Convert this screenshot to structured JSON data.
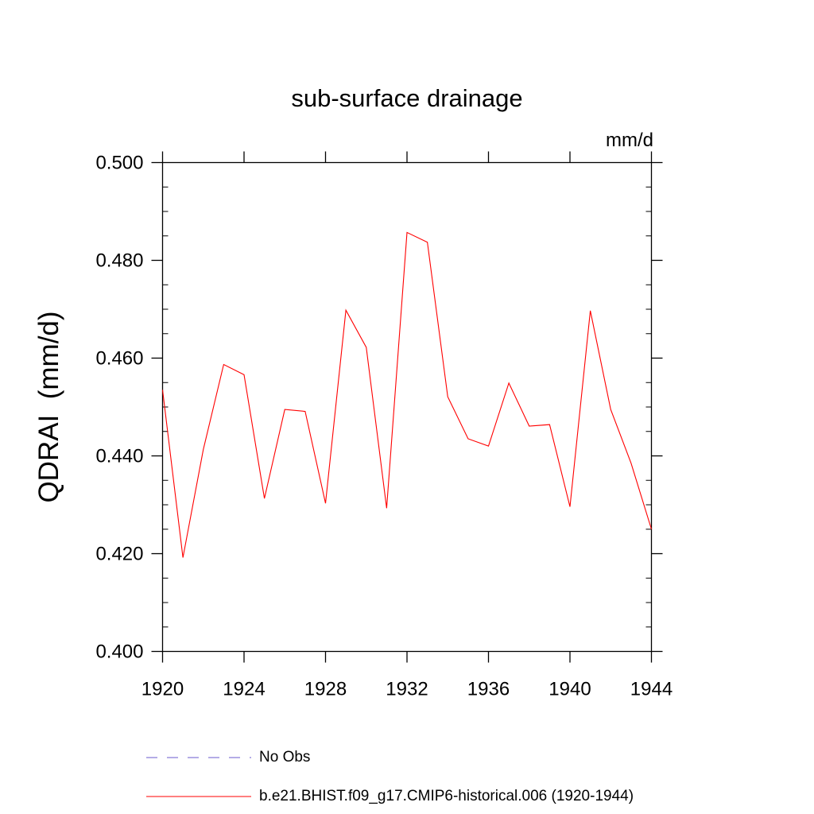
{
  "chart_data": {
    "type": "line",
    "title": "sub-surface drainage",
    "units": "mm/d",
    "ylabel": "QDRAI  (mm/d)",
    "xlabel": "",
    "xlim": [
      1920,
      1944
    ],
    "ylim": [
      0.4,
      0.5
    ],
    "x_ticks": [
      "1920",
      "1924",
      "1928",
      "1932",
      "1936",
      "1940",
      "1944"
    ],
    "y_ticks": [
      "0.400",
      "0.420",
      "0.440",
      "0.460",
      "0.480",
      "0.500"
    ],
    "series": [
      {
        "name": "b.e21.BHIST.f09_g17.CMIP6-historical.006 (1920-1944)",
        "color": "#ff0000",
        "style": "solid",
        "x": [
          1920,
          1921,
          1922,
          1923,
          1924,
          1925,
          1926,
          1927,
          1928,
          1929,
          1930,
          1931,
          1932,
          1933,
          1934,
          1935,
          1936,
          1937,
          1938,
          1939,
          1940,
          1941,
          1942,
          1943,
          1944
        ],
        "values": [
          0.4535,
          0.4192,
          0.4413,
          0.4587,
          0.4566,
          0.4313,
          0.4495,
          0.4491,
          0.4303,
          0.4698,
          0.4622,
          0.4293,
          0.4857,
          0.4837,
          0.4521,
          0.4435,
          0.442,
          0.4549,
          0.4461,
          0.4464,
          0.4296,
          0.4697,
          0.4495,
          0.4385,
          0.425
        ]
      },
      {
        "name": "No Obs",
        "color": "#6a5acd",
        "style": "dashed",
        "x": [],
        "values": []
      }
    ],
    "legend_position": "bottom-left"
  }
}
